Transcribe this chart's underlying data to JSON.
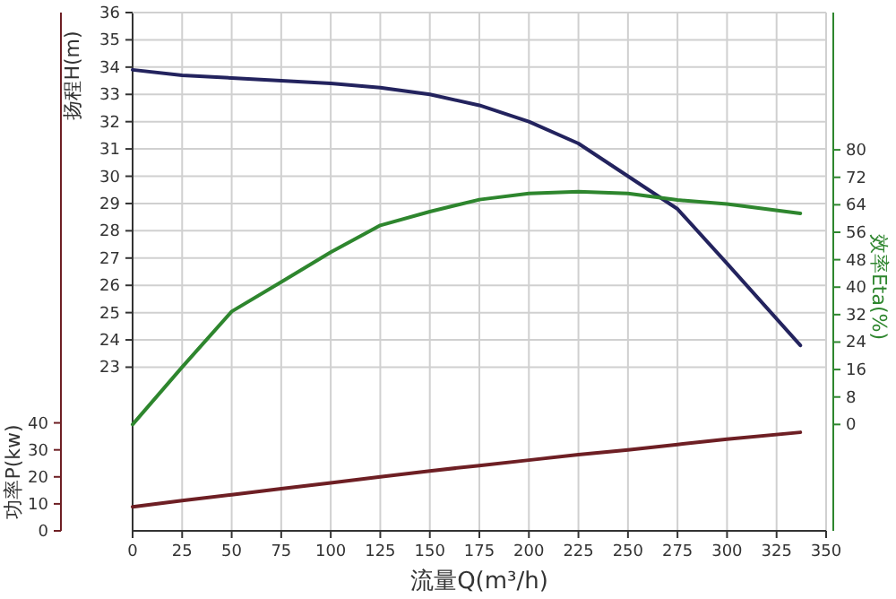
{
  "chart_data": {
    "type": "line",
    "xlabel": "流量Q(m³/h)",
    "ylabel": "扬程H(m)",
    "y2label": "效率Eta(%)",
    "y3label": "功率P(kw)",
    "x": [
      0,
      25,
      50,
      75,
      100,
      125,
      150,
      175,
      200,
      225,
      250,
      275,
      300,
      337
    ],
    "series": [
      {
        "color": "#23235e",
        "axis": "y",
        "values": [
          33.9,
          33.7,
          33.6,
          33.5,
          33.4,
          33.25,
          33.0,
          32.6,
          32.0,
          31.2,
          30.0,
          28.8,
          26.8,
          23.8
        ]
      },
      {
        "color": "#2e862e",
        "axis": "y2",
        "values": [
          0,
          16.7,
          32.9,
          41.5,
          50.2,
          58,
          62,
          65.5,
          67.3,
          67.8,
          67.3,
          65.4,
          64.2,
          61.5
        ]
      },
      {
        "color": "#6e1f24",
        "axis": "y3",
        "values": [
          8.9,
          11.2,
          13.4,
          15.6,
          17.8,
          20,
          22.2,
          24.2,
          26.2,
          28.2,
          30,
          32,
          34,
          36.5
        ]
      }
    ],
    "xlim": [
      0,
      350
    ],
    "xticks": [
      0,
      25,
      50,
      75,
      100,
      125,
      150,
      175,
      200,
      225,
      250,
      275,
      300,
      325,
      350
    ],
    "ylim": [
      17,
      36
    ],
    "yticks": [
      23,
      24,
      25,
      26,
      27,
      28,
      29,
      30,
      31,
      32,
      33,
      34,
      35,
      36
    ],
    "y2lim": [
      -31,
      120
    ],
    "y2ticks": [
      0,
      8,
      16,
      24,
      32,
      40,
      48,
      56,
      64,
      72,
      80
    ],
    "y3lim": [
      0,
      192
    ],
    "y3ticks": [
      0,
      10,
      20,
      30,
      40
    ],
    "grid": true
  }
}
